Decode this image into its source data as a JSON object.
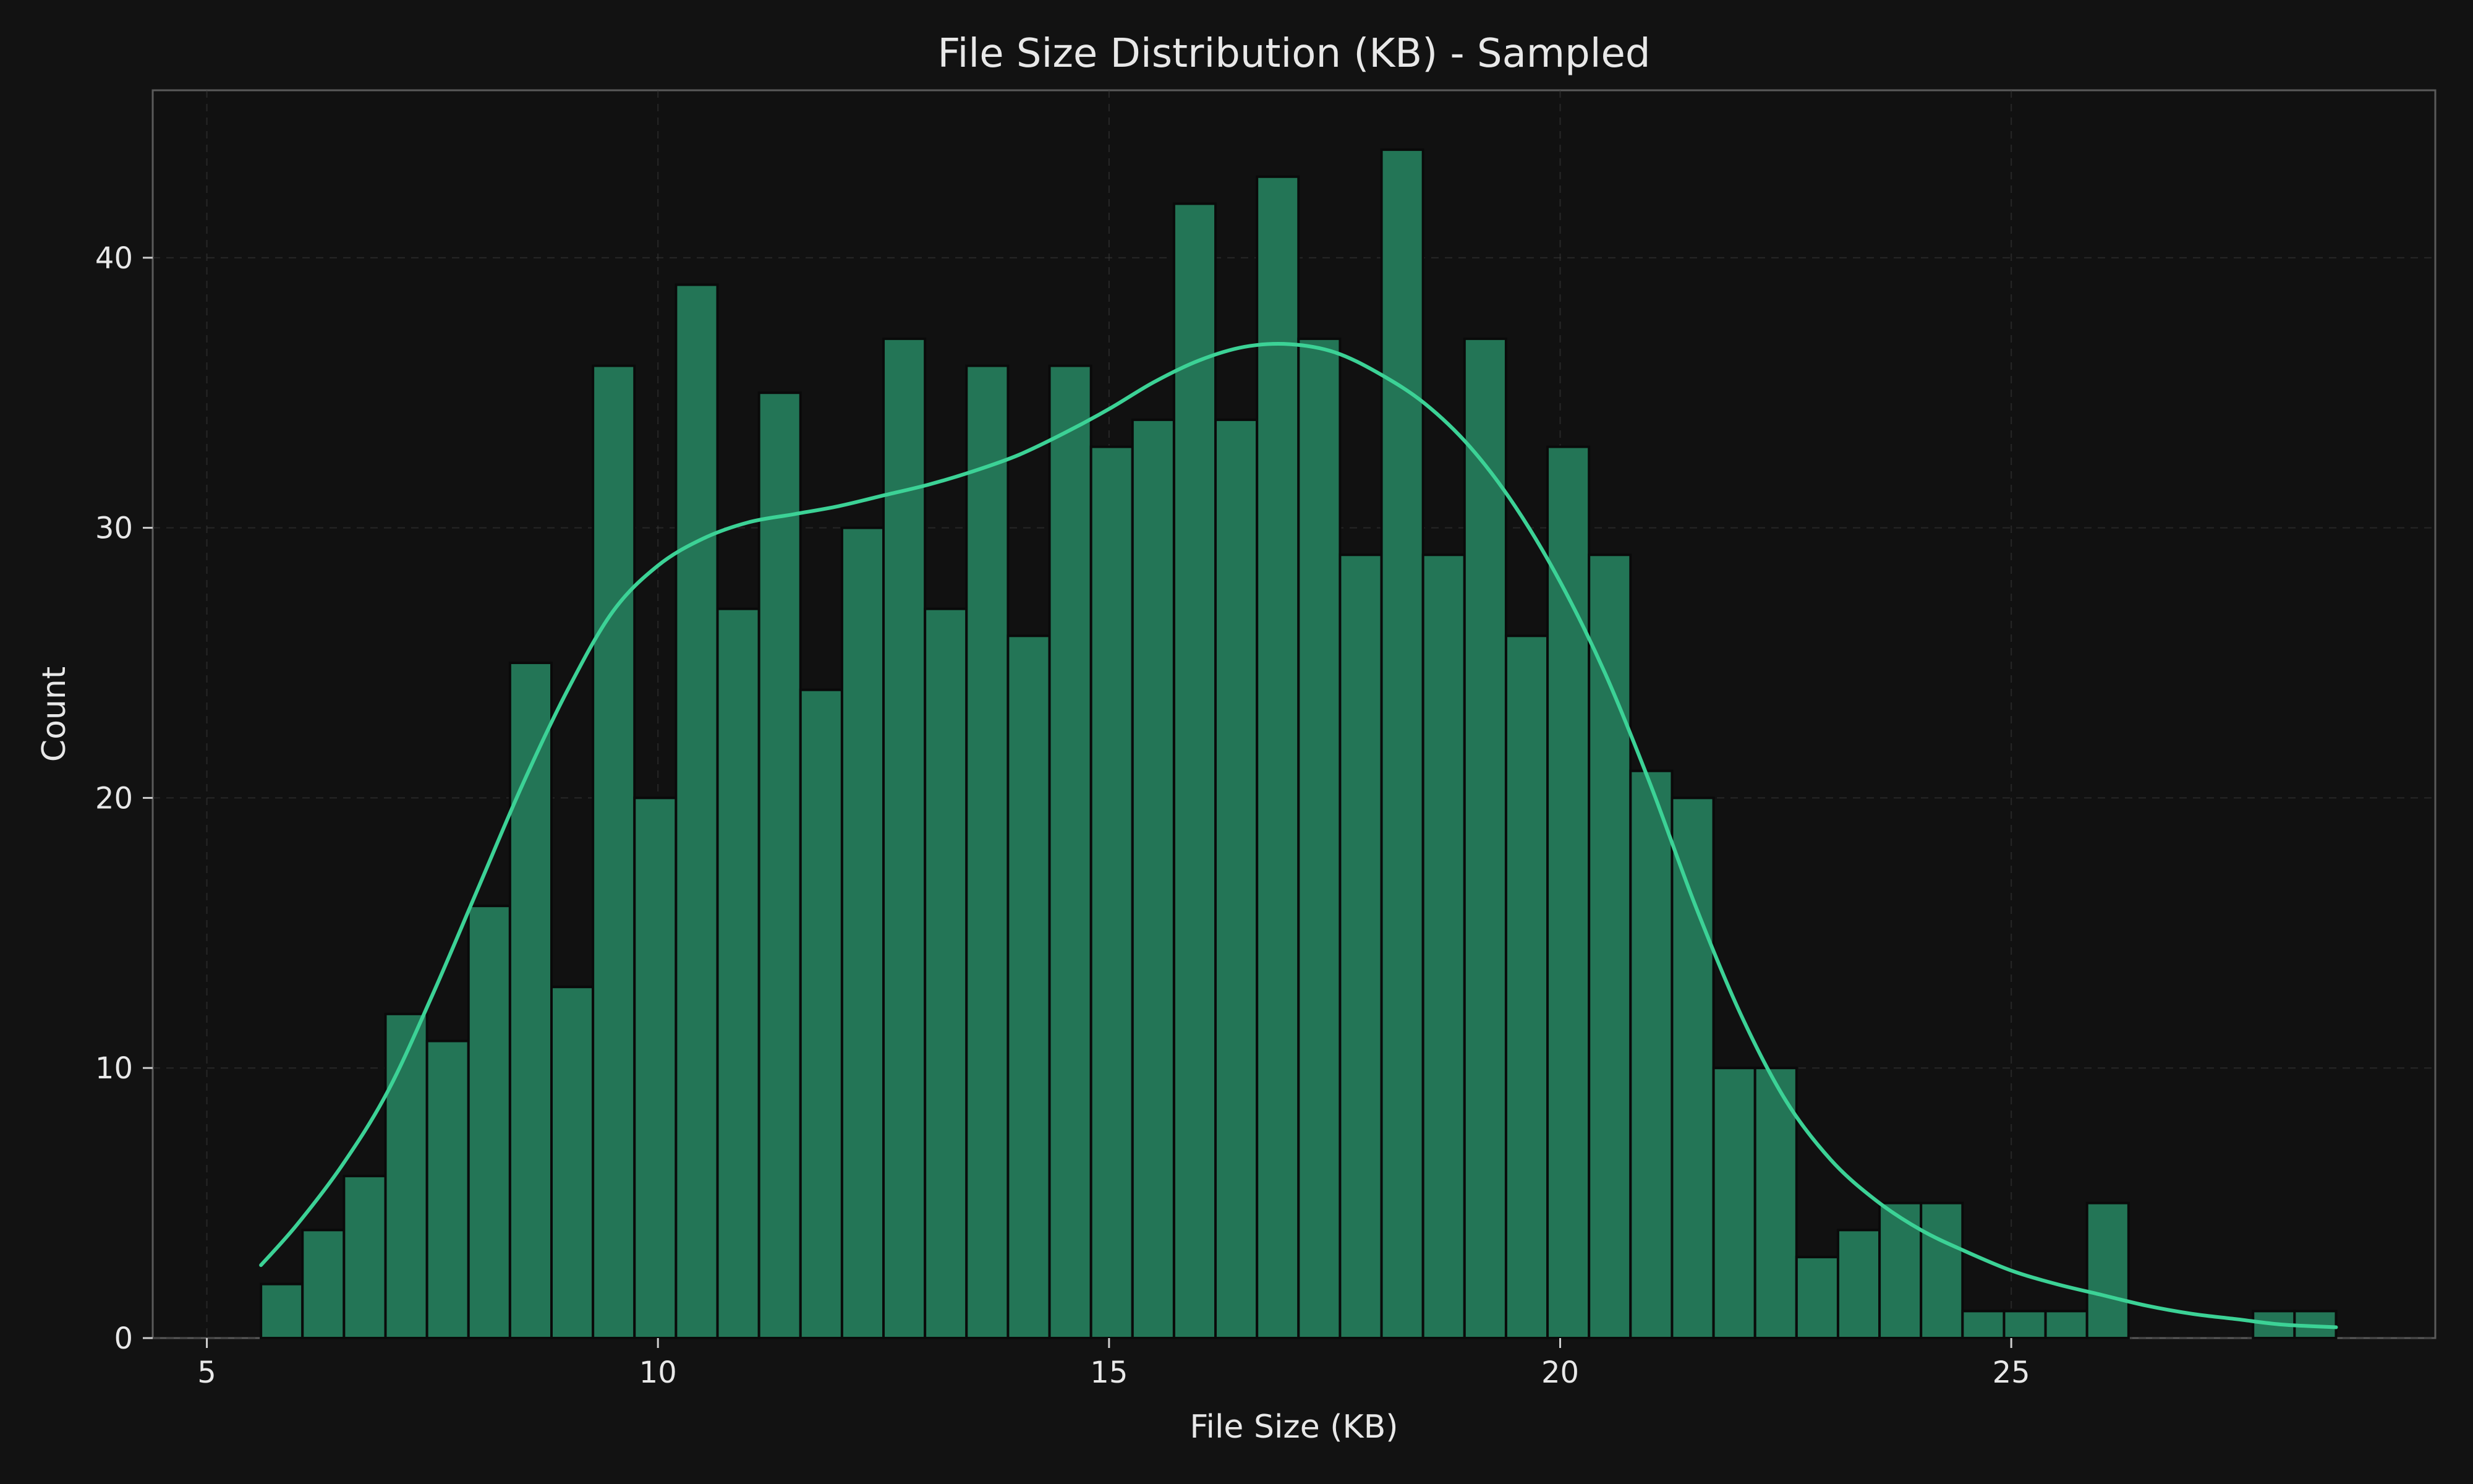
{
  "chart_data": {
    "type": "bar",
    "title": "File Size Distribution (KB) - Sampled",
    "xlabel": "File Size (KB)",
    "ylabel": "Count",
    "xlim": [
      4.4,
      29.7
    ],
    "ylim": [
      0,
      46.2
    ],
    "xticks": [
      5,
      10,
      15,
      20,
      25
    ],
    "yticks": [
      0,
      10,
      20,
      30,
      40
    ],
    "grid": true,
    "legend": "none",
    "bin_edges": [
      5.6,
      6.06,
      6.52,
      6.98,
      7.44,
      7.9,
      8.36,
      8.82,
      9.28,
      9.74,
      10.2,
      10.66,
      11.12,
      11.58,
      12.04,
      12.5,
      12.96,
      13.42,
      13.88,
      14.34,
      14.8,
      15.26,
      15.72,
      16.18,
      16.64,
      17.1,
      17.56,
      18.02,
      18.48,
      18.94,
      19.4,
      19.86,
      20.32,
      20.78,
      21.24,
      21.7,
      22.16,
      22.62,
      23.08,
      23.54,
      24.0,
      24.46,
      24.92,
      25.38,
      25.84,
      26.3,
      26.76,
      27.22,
      27.68,
      28.14,
      28.6
    ],
    "counts": [
      2,
      4,
      6,
      12,
      11,
      16,
      25,
      13,
      36,
      20,
      39,
      27,
      35,
      24,
      30,
      37,
      27,
      36,
      26,
      36,
      33,
      34,
      42,
      34,
      43,
      37,
      29,
      44,
      29,
      37,
      26,
      33,
      29,
      21,
      20,
      10,
      10,
      3,
      4,
      5,
      5,
      1,
      1,
      1,
      5,
      0,
      0,
      0,
      1,
      1
    ],
    "kde": {
      "x": [
        5.6,
        6.0,
        6.5,
        7.0,
        7.5,
        8.0,
        8.5,
        9.0,
        9.5,
        10.0,
        10.5,
        11.0,
        11.5,
        12.0,
        12.5,
        13.0,
        13.5,
        14.0,
        14.5,
        15.0,
        15.5,
        16.0,
        16.5,
        17.0,
        17.5,
        18.0,
        18.5,
        19.0,
        19.5,
        20.0,
        20.5,
        21.0,
        21.5,
        22.0,
        22.5,
        23.0,
        23.5,
        24.0,
        24.5,
        25.0,
        25.5,
        26.0,
        26.5,
        27.0,
        27.5,
        28.0,
        28.6
      ],
      "y": [
        2.7,
        4.2,
        6.4,
        9.1,
        12.7,
        16.6,
        20.5,
        24.0,
        26.9,
        28.6,
        29.6,
        30.2,
        30.5,
        30.8,
        31.2,
        31.6,
        32.1,
        32.7,
        33.5,
        34.4,
        35.4,
        36.2,
        36.7,
        36.8,
        36.5,
        35.7,
        34.6,
        33.0,
        30.8,
        28.0,
        24.6,
        20.5,
        16.0,
        12.0,
        8.8,
        6.6,
        5.1,
        4.0,
        3.2,
        2.5,
        2.0,
        1.6,
        1.2,
        0.9,
        0.7,
        0.5,
        0.4
      ]
    },
    "colors": {
      "background": "#121212",
      "bar_fill": "#237556",
      "bar_edge": "#0a0a0a",
      "kde_line": "#3cd296",
      "text": "#e8e8e8"
    }
  }
}
